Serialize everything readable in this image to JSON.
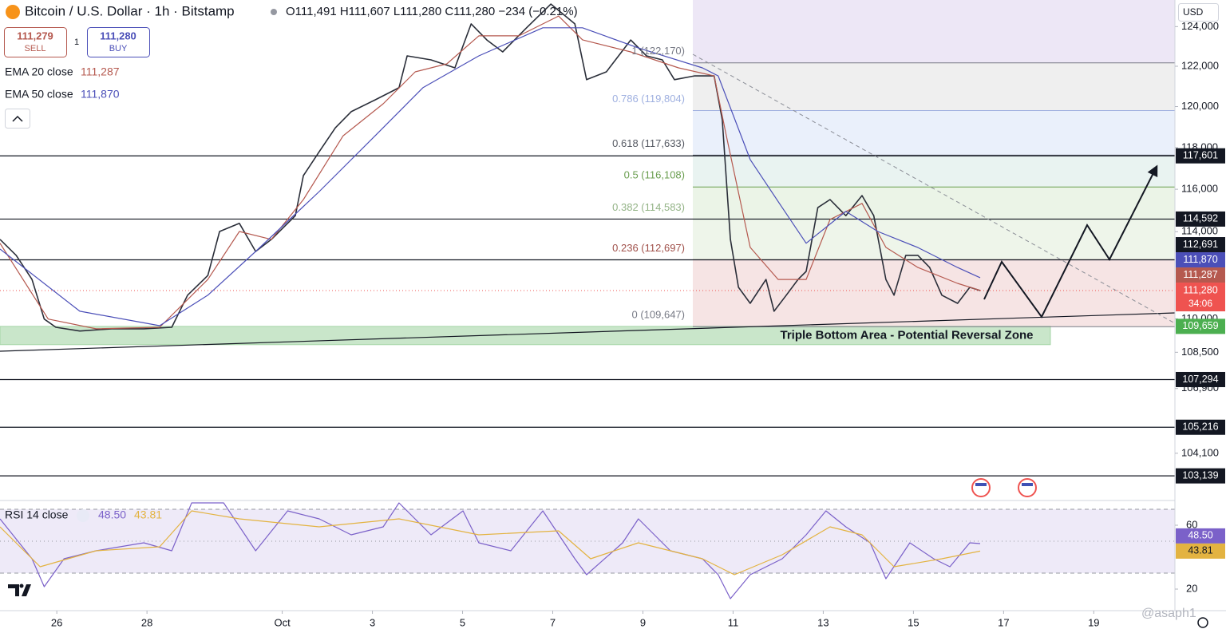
{
  "chart_data": [
    {
      "type": "line",
      "title": "Bitcoin / U.S. Dollar · 1h · Bitstamp",
      "ohlc": "O111,491 H111,607 L111,280 C111,280 −234 (−0.21%)",
      "sell": {
        "price": "111,279",
        "label": "SELL"
      },
      "spread": "1",
      "buy": {
        "price": "111,280",
        "label": "BUY"
      },
      "currency": "USD",
      "watermark": "@asaph1",
      "log_scale": true,
      "xlim": [
        24.74,
        50.8
      ],
      "xticks": [
        26,
        28,
        {
          "value": 31,
          "label": "Oct"
        },
        {
          "value": 33,
          "label": "3"
        },
        {
          "value": 35,
          "label": "5"
        },
        {
          "value": 37,
          "label": "7"
        },
        {
          "value": 39,
          "label": "9"
        },
        {
          "value": 41,
          "label": "11"
        },
        {
          "value": 43,
          "label": "13"
        },
        {
          "value": 45,
          "label": "15"
        },
        {
          "value": 47,
          "label": "17"
        },
        {
          "value": 49,
          "label": "19"
        }
      ],
      "ylim": [
        102170,
        125360
      ],
      "yticks": [
        {
          "value": 124000,
          "label": "124,000"
        },
        {
          "value": 122000,
          "label": "122,000"
        },
        {
          "value": 120000,
          "label": "120,000"
        },
        {
          "value": 118000,
          "label": "118,000"
        },
        {
          "value": 116000,
          "label": "116,000"
        },
        {
          "value": 114000,
          "label": "114,000"
        },
        {
          "value": 110000,
          "label": "110,000"
        },
        {
          "value": 108500,
          "label": "108,500"
        },
        {
          "value": 106900,
          "label": "106,900"
        },
        {
          "value": 104100,
          "label": "104,100"
        }
      ],
      "series": [
        {
          "color": "#2a2e39",
          "badge_color": "#ef5350",
          "last_label": "111,280",
          "countdown": "34:06",
          "x": [
            24.74,
            25.1,
            25.45,
            25.72,
            25.98,
            26.51,
            27.22,
            27.93,
            28.55,
            28.9,
            29.35,
            29.61,
            30.05,
            30.41,
            30.76,
            31.29,
            31.47,
            31.82,
            32.18,
            32.53,
            33.06,
            33.59,
            33.77,
            34.3,
            34.83,
            35.19,
            35.54,
            35.89,
            36.42,
            36.96,
            37.49,
            37.75,
            38.19,
            38.73,
            39.08,
            39.43,
            39.7,
            40.14,
            40.58,
            40.76,
            40.94,
            41.12,
            41.38,
            41.73,
            41.91,
            42.18,
            42.44,
            42.62,
            42.88,
            43.15,
            43.5,
            43.86,
            44.12,
            44.39,
            44.57,
            44.83,
            45.1,
            45.36,
            45.63,
            45.98,
            46.25,
            46.48
          ],
          "values": [
            113640,
            112900,
            111790,
            109990,
            109620,
            109450,
            109550,
            109550,
            109620,
            111070,
            111970,
            114010,
            114390,
            113080,
            113640,
            114750,
            116650,
            117800,
            118960,
            119750,
            120330,
            120930,
            122520,
            122320,
            121920,
            124140,
            123320,
            122720,
            123940,
            125150,
            124140,
            121330,
            121720,
            123320,
            122520,
            122320,
            121330,
            121520,
            121520,
            119350,
            113640,
            111430,
            110700,
            111790,
            110340,
            111070,
            111790,
            112160,
            115130,
            115510,
            114750,
            115700,
            114750,
            111790,
            111070,
            112900,
            112900,
            112340,
            111070,
            110700,
            111430,
            111280
          ]
        },
        {
          "name": "EMA 20 close",
          "color": "#b5594f",
          "last_label": "111,287",
          "x": [
            24.74,
            25.81,
            26.87,
            28.28,
            29.35,
            30.05,
            30.76,
            31.47,
            32.35,
            33.24,
            33.95,
            34.65,
            35.36,
            36.25,
            37.13,
            37.66,
            38.73,
            39.79,
            40.58,
            40.85,
            41.38,
            42.0,
            42.62,
            43.15,
            43.86,
            44.39,
            45.1,
            45.98,
            46.48
          ],
          "values": [
            113460,
            109990,
            109550,
            109620,
            111790,
            114010,
            113640,
            115510,
            118570,
            120140,
            121720,
            122120,
            123530,
            123530,
            124540,
            123330,
            122720,
            121920,
            121520,
            118570,
            113270,
            111790,
            111790,
            114570,
            115330,
            113270,
            112340,
            111610,
            111287
          ]
        },
        {
          "name": "EMA 50 close",
          "color": "#4b4fb8",
          "last_label": "111,870",
          "x": [
            24.74,
            26.51,
            28.28,
            29.35,
            30.41,
            31.82,
            33.06,
            34.12,
            35.36,
            36.78,
            37.66,
            38.9,
            40.32,
            40.67,
            41.38,
            42.09,
            42.62,
            43.5,
            44.21,
            45.1,
            45.98,
            46.48
          ],
          "values": [
            113190,
            110340,
            109690,
            111070,
            113080,
            115890,
            118570,
            120930,
            122520,
            123940,
            123940,
            122920,
            121920,
            121520,
            117420,
            115130,
            113460,
            114950,
            114010,
            113260,
            112340,
            111870
          ]
        }
      ],
      "fib_top_color": "#ede7f6",
      "fib": [
        {
          "value": 122170,
          "label": "1 (122,170)",
          "color": "#787b86",
          "zone_color": "#efefef"
        },
        {
          "value": 119804,
          "label": "0.786 (119,804)",
          "color": "#9fb0e0",
          "zone_color": "#eaf0fb"
        },
        {
          "value": 117633,
          "label": "0.618 (117,633)",
          "color": "#555962",
          "zone_color": "#e9f3f1"
        },
        {
          "value": 116108,
          "label": "0.5 (116,108)",
          "color": "#6a9e4f",
          "zone_color": "#ebf4e7"
        },
        {
          "value": 114583,
          "label": "0.382 (114,583)",
          "color": "#93b386",
          "zone_color": "#eef5ea"
        },
        {
          "value": 112697,
          "label": "0.236 (112,697)",
          "color": "#a0504a",
          "zone_color": "#f6e4e4"
        },
        {
          "value": 109647,
          "label": "0 (109,647)",
          "color": "#787b86"
        }
      ],
      "levels": [
        {
          "value": 117601,
          "label": "117,601"
        },
        {
          "value": 114592,
          "label": "114,592"
        },
        {
          "value": 112691,
          "label": "112,691"
        },
        {
          "value": 107294,
          "label": "107,294"
        },
        {
          "value": 105216,
          "label": "105,216"
        },
        {
          "value": 103139,
          "label": "103,139"
        }
      ],
      "support_badge": {
        "value": 109659,
        "label": "109,659",
        "color": "#4caf50"
      },
      "zone": {
        "label": "Triple Bottom Area - Potential Reversal Zone",
        "low": 108840,
        "high": 109659,
        "color": "#a5d6a7"
      }
    },
    {
      "type": "line",
      "title": "RSI 14 close",
      "xlim": [
        24.74,
        50.8
      ],
      "ylim": [
        6.5,
        75
      ],
      "yticks": [
        60,
        20
      ],
      "hlines": [
        70,
        50,
        30
      ],
      "band": [
        30,
        70
      ],
      "band_color": "#eeeaf8",
      "series": [
        {
          "color": "#7b61c9",
          "last_label": "48.50",
          "x": [
            24.74,
            25.45,
            25.72,
            26.16,
            26.87,
            27.93,
            28.55,
            28.99,
            29.7,
            30.41,
            31.12,
            31.82,
            32.53,
            33.24,
            33.59,
            34.3,
            35.01,
            35.36,
            36.07,
            36.78,
            37.49,
            37.75,
            38.55,
            38.9,
            39.61,
            40.32,
            40.67,
            40.94,
            41.38,
            42.09,
            42.62,
            43.06,
            43.5,
            44.04,
            44.39,
            44.92,
            45.45,
            45.81,
            46.25,
            46.48
          ],
          "values": [
            64,
            39,
            21.5,
            39,
            44,
            49,
            44,
            74,
            74,
            44,
            69,
            64,
            54,
            59,
            74,
            54,
            69,
            49,
            44,
            69,
            39,
            29,
            49,
            64,
            44,
            39,
            29,
            14,
            29,
            39,
            54,
            69,
            59,
            49,
            26.5,
            49,
            39,
            34,
            49,
            48.5
          ]
        },
        {
          "color": "#e3b341",
          "last_label": "43.81",
          "x": [
            24.74,
            25.63,
            26.87,
            28.28,
            28.99,
            30.05,
            31.82,
            33.59,
            35.36,
            37.13,
            37.84,
            38.9,
            40.32,
            41.03,
            42.09,
            43.15,
            43.86,
            44.57,
            45.63,
            46.48
          ],
          "values": [
            59,
            34,
            44,
            46.5,
            69,
            64,
            59,
            64,
            54,
            56.5,
            39,
            49,
            39,
            29,
            41.5,
            59,
            54,
            34,
            39,
            43.81
          ]
        }
      ]
    }
  ]
}
